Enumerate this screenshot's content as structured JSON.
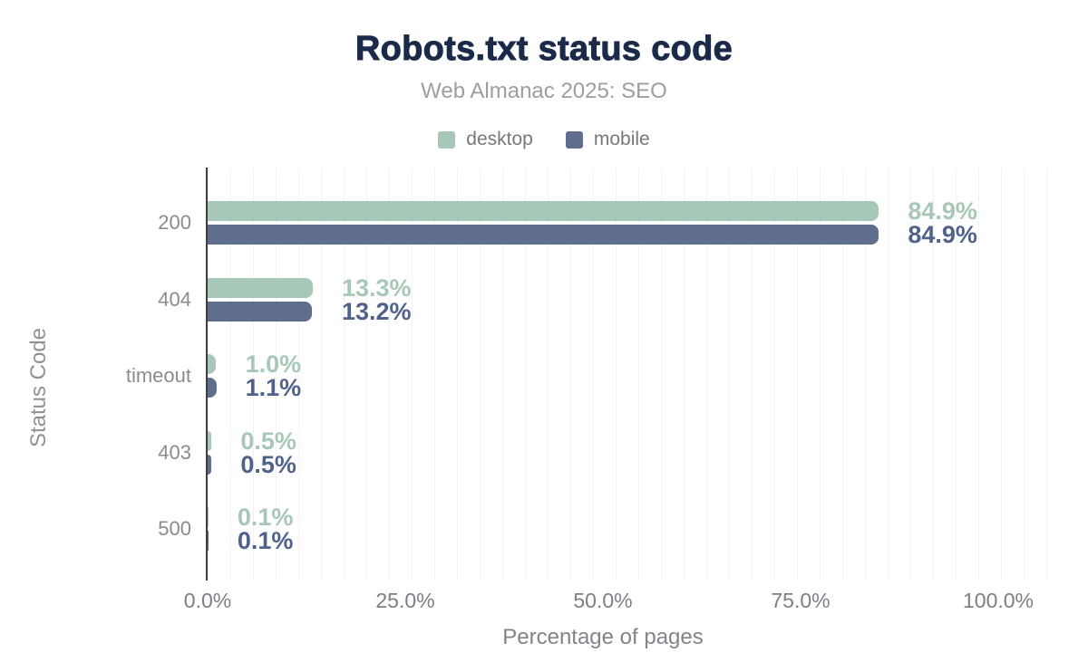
{
  "chart_data": {
    "type": "bar",
    "orientation": "horizontal",
    "title": "Robots.txt status code",
    "subtitle": "Web Almanac 2025: SEO",
    "xlabel": "Percentage of pages",
    "ylabel": "Status Code",
    "xlim": [
      0,
      100
    ],
    "x_tick_labels": [
      "0.0%",
      "25.0%",
      "50.0%",
      "75.0%",
      "100.0%"
    ],
    "x_tick_values": [
      0,
      25,
      50,
      75,
      100
    ],
    "grid": "vertical minor gridlines only, dark y-axis line, no x-axis line",
    "legend_position": "top-center",
    "categories": [
      "200",
      "404",
      "timeout",
      "403",
      "500"
    ],
    "series": [
      {
        "name": "desktop",
        "color": "#a8c8b7",
        "label_color": "#a8c7b6",
        "values": [
          84.9,
          13.3,
          1.0,
          0.5,
          0.1
        ],
        "value_labels": [
          "84.9%",
          "13.3%",
          "1.0%",
          "0.5%",
          "0.1%"
        ]
      },
      {
        "name": "mobile",
        "color": "#5f6e8c",
        "label_color": "#50628a",
        "values": [
          84.9,
          13.2,
          1.1,
          0.5,
          0.1
        ],
        "value_labels": [
          "84.9%",
          "13.2%",
          "1.1%",
          "0.5%",
          "0.1%"
        ]
      }
    ],
    "colors": {
      "title": "#1b2a49",
      "subtitle": "#9b9ea3",
      "axis_line": "#3e3e42",
      "gridline": "#f2f2f4",
      "tick_label": "#7a8086",
      "category_label": "#888c90",
      "axis_title": "#82878c",
      "legend_label": "#75787c"
    }
  }
}
